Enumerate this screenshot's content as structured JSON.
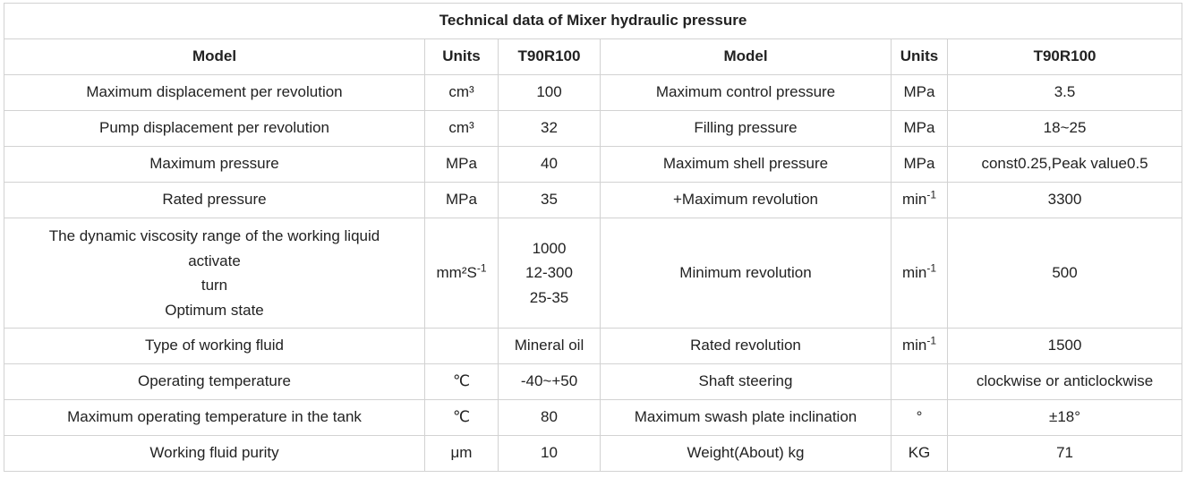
{
  "title": "Technical data of Mixer hydraulic pressure",
  "headers": [
    "Model",
    "Units",
    "T90R100",
    "Model",
    "Units",
    "T90R100"
  ],
  "rows": [
    {
      "left": {
        "param": [
          "Maximum displacement per revolution"
        ],
        "unit": "cm³",
        "unit_sup": "",
        "value": [
          "100"
        ]
      },
      "right": {
        "param": "Maximum control pressure",
        "unit": "MPa",
        "unit_sup": "",
        "value": "3.5"
      }
    },
    {
      "left": {
        "param": [
          "Pump displacement per revolution"
        ],
        "unit": "cm³",
        "unit_sup": "",
        "value": [
          "32"
        ]
      },
      "right": {
        "param": "Filling pressure",
        "unit": "MPa",
        "unit_sup": "",
        "value": "18~25"
      }
    },
    {
      "left": {
        "param": [
          "Maximum pressure"
        ],
        "unit": "MPa",
        "unit_sup": "",
        "value": [
          "40"
        ]
      },
      "right": {
        "param": "Maximum shell pressure",
        "unit": "MPa",
        "unit_sup": "",
        "value": "const0.25,Peak value0.5"
      }
    },
    {
      "left": {
        "param": [
          "Rated pressure"
        ],
        "unit": "MPa",
        "unit_sup": "",
        "value": [
          "35"
        ]
      },
      "right": {
        "param": "+Maximum revolution",
        "unit": "min",
        "unit_sup": "-1",
        "value": "3300"
      }
    },
    {
      "left": {
        "param": [
          "The dynamic viscosity range of the working liquid",
          "activate",
          "turn",
          "Optimum state"
        ],
        "unit": "mm²S",
        "unit_sup": "-1",
        "value": [
          "1000",
          "12-300",
          "25-35"
        ]
      },
      "right": {
        "param": "Minimum revolution",
        "unit": "min",
        "unit_sup": "-1",
        "value": "500"
      }
    },
    {
      "left": {
        "param": [
          "Type of working fluid"
        ],
        "unit": "",
        "unit_sup": "",
        "value": [
          "Mineral oil"
        ]
      },
      "right": {
        "param": "Rated revolution",
        "unit": "min",
        "unit_sup": "-1",
        "value": "1500"
      }
    },
    {
      "left": {
        "param": [
          "Operating temperature"
        ],
        "unit": "℃",
        "unit_sup": "",
        "value": [
          "-40~+50"
        ]
      },
      "right": {
        "param": "Shaft steering",
        "unit": "",
        "unit_sup": "",
        "value": "clockwise or anticlockwise"
      }
    },
    {
      "left": {
        "param": [
          "Maximum operating temperature in the tank"
        ],
        "unit": "℃",
        "unit_sup": "",
        "value": [
          "80"
        ]
      },
      "right": {
        "param": "Maximum swash plate inclination",
        "unit": "°",
        "unit_sup": "",
        "value": "±18°"
      }
    },
    {
      "left": {
        "param": [
          "Working fluid purity"
        ],
        "unit": "μm",
        "unit_sup": "",
        "value": [
          "10"
        ]
      },
      "right": {
        "param": "Weight(About) kg",
        "unit": "KG",
        "unit_sup": "",
        "value": "71"
      }
    }
  ]
}
